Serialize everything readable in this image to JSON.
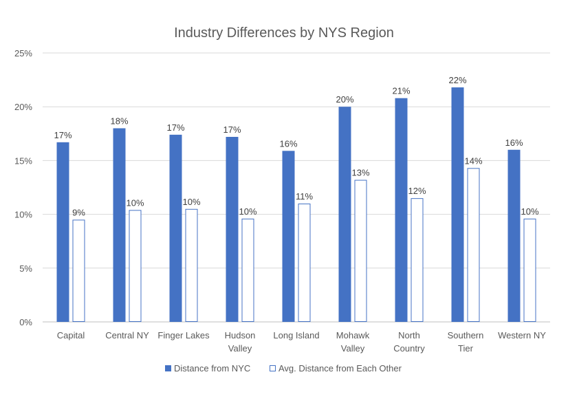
{
  "chart_data": {
    "type": "bar",
    "title": "Industry Differences by NYS Region",
    "xlabel": "",
    "ylabel": "",
    "ylim": [
      0,
      25
    ],
    "yticks": [
      "0%",
      "5%",
      "10%",
      "15%",
      "20%",
      "25%"
    ],
    "grid": true,
    "legend_position": "bottom",
    "categories": [
      [
        "Capital"
      ],
      [
        "Central NY"
      ],
      [
        "Finger Lakes"
      ],
      [
        "Hudson",
        "Valley"
      ],
      [
        "Long Island"
      ],
      [
        "Mohawk",
        "Valley"
      ],
      [
        "North",
        "Country"
      ],
      [
        "Southern",
        "Tier"
      ],
      [
        "Western NY"
      ]
    ],
    "series": [
      {
        "name": "Distance from NYC",
        "color": "#4472C4",
        "style": "filled",
        "values": [
          16.7,
          18.0,
          17.4,
          17.2,
          15.9,
          20.0,
          20.8,
          21.8,
          16.0
        ],
        "labels": [
          "17%",
          "18%",
          "17%",
          "17%",
          "16%",
          "20%",
          "21%",
          "22%",
          "16%"
        ]
      },
      {
        "name": "Avg. Distance from Each Other",
        "color": "#4472C4",
        "style": "outline",
        "values": [
          9.5,
          10.4,
          10.5,
          9.6,
          11.0,
          13.2,
          11.5,
          14.3,
          9.6
        ],
        "labels": [
          "9%",
          "10%",
          "10%",
          "10%",
          "11%",
          "13%",
          "12%",
          "14%",
          "10%"
        ]
      }
    ]
  }
}
